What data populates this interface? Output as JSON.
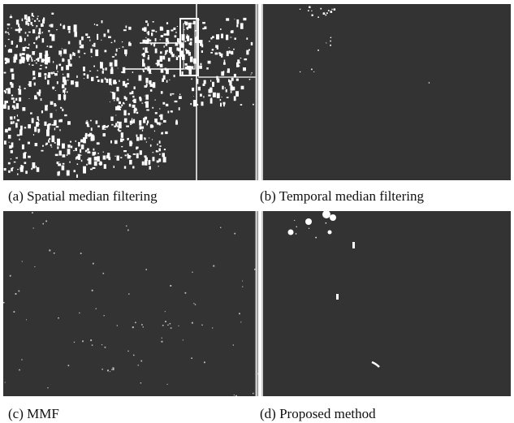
{
  "figure": {
    "panels": [
      {
        "id": "a",
        "caption": "(a) Spatial median filtering",
        "noise": "heavy"
      },
      {
        "id": "b",
        "caption": "(b) Temporal median filtering",
        "noise": "sparse"
      },
      {
        "id": "c",
        "caption": "(c) MMF",
        "noise": "faint"
      },
      {
        "id": "d",
        "caption": "(d) Proposed method",
        "noise": "sparse-bright"
      }
    ],
    "colors": {
      "background": "#333333",
      "foreground": "#ffffff"
    }
  }
}
